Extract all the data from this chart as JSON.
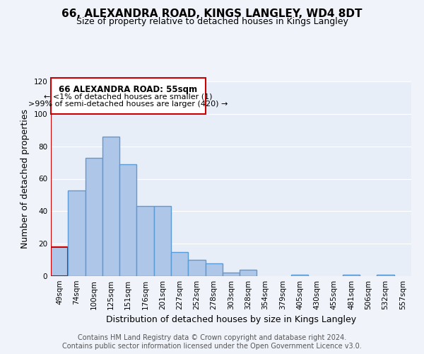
{
  "title": "66, ALEXANDRA ROAD, KINGS LANGLEY, WD4 8DT",
  "subtitle": "Size of property relative to detached houses in Kings Langley",
  "xlabel": "Distribution of detached houses by size in Kings Langley",
  "ylabel": "Number of detached properties",
  "bin_labels": [
    "49sqm",
    "74sqm",
    "100sqm",
    "125sqm",
    "151sqm",
    "176sqm",
    "201sqm",
    "227sqm",
    "252sqm",
    "278sqm",
    "303sqm",
    "328sqm",
    "354sqm",
    "379sqm",
    "405sqm",
    "430sqm",
    "455sqm",
    "481sqm",
    "506sqm",
    "532sqm",
    "557sqm"
  ],
  "bar_values": [
    18,
    53,
    73,
    86,
    69,
    43,
    43,
    15,
    10,
    8,
    2,
    4,
    0,
    0,
    1,
    0,
    0,
    1,
    0,
    1,
    0
  ],
  "bar_color": "#aec6e8",
  "bar_edge_color": "#5b9bd5",
  "highlight_bar_edge_color": "#cc0000",
  "vline_color": "#cc0000",
  "ylim": [
    0,
    120
  ],
  "yticks": [
    0,
    20,
    40,
    60,
    80,
    100,
    120
  ],
  "annotation_title": "66 ALEXANDRA ROAD: 55sqm",
  "annotation_line1": "← <1% of detached houses are smaller (1)",
  "annotation_line2": ">99% of semi-detached houses are larger (420) →",
  "annotation_box_color": "#ffffff",
  "annotation_box_edge_color": "#cc0000",
  "footer_line1": "Contains HM Land Registry data © Crown copyright and database right 2024.",
  "footer_line2": "Contains public sector information licensed under the Open Government Licence v3.0.",
  "bg_color": "#f0f4fa",
  "plot_bg_color": "#e8eef8",
  "grid_color": "#ffffff",
  "title_fontsize": 11,
  "subtitle_fontsize": 9,
  "axis_label_fontsize": 9,
  "tick_fontsize": 7.5,
  "footer_fontsize": 7
}
